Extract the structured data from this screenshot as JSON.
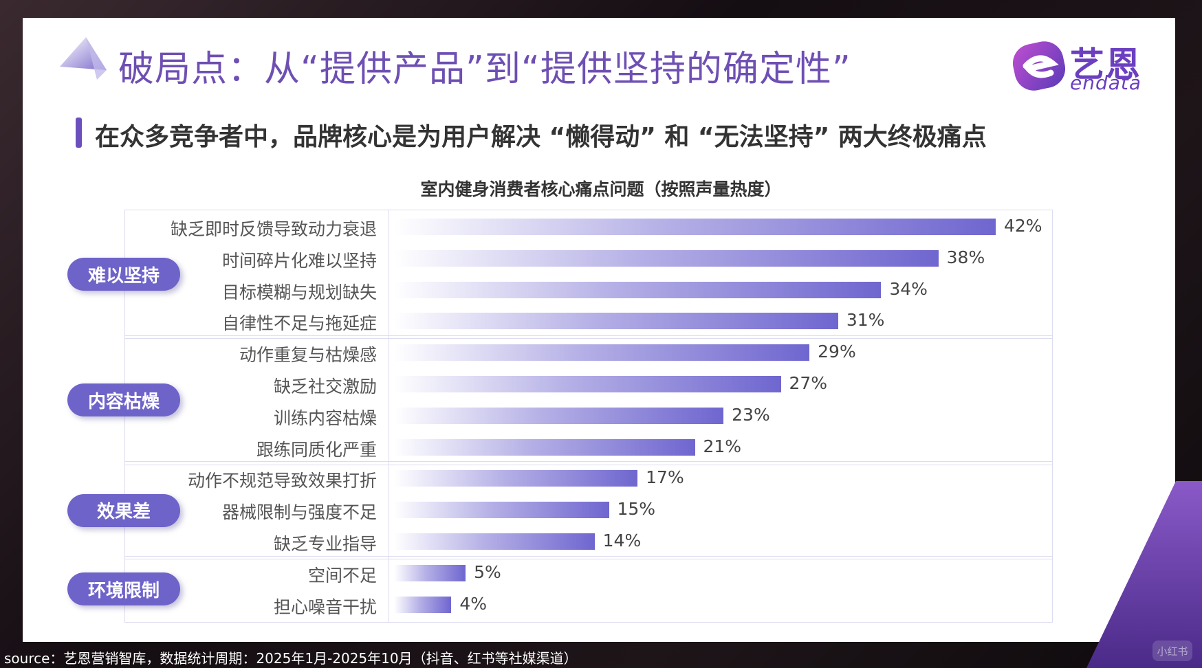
{
  "title": "破局点：从“提供产品”到“提供坚持的确定性”",
  "subtitle": "在众多竞争者中，品牌核心是为用户解决 “懒得动” 和 “无法坚持” 两大终极痛点",
  "logo": {
    "cn": "艺恩",
    "en": "endata"
  },
  "source": "source：艺恩营销智库，数据统计周期：2025年1月-2025年10月（抖音、红书等社媒渠道）",
  "watermark": "小红书",
  "colors": {
    "title": "#6e4fb3",
    "pill": "#6e63c9",
    "bar_end": "#6f66cf"
  },
  "chart_data": {
    "type": "bar",
    "orientation": "horizontal",
    "title": "室内健身消费者核心痛点问题（按照声量热度）",
    "unit": "%",
    "xlim": [
      0,
      42
    ],
    "groups": [
      {
        "name": "难以坚持",
        "categories": [
          "缺乏即时反馈导致动力衰退",
          "时间碎片化难以坚持",
          "目标模糊与规划缺失",
          "自律性不足与拖延症"
        ],
        "values": [
          42,
          38,
          34,
          31
        ]
      },
      {
        "name": "内容枯燥",
        "categories": [
          "动作重复与枯燥感",
          "缺乏社交激励",
          "训练内容枯燥",
          "跟练同质化严重"
        ],
        "values": [
          29,
          27,
          23,
          21
        ]
      },
      {
        "name": "效果差",
        "categories": [
          "动作不规范导致效果打折",
          "器械限制与强度不足",
          "缺乏专业指导"
        ],
        "values": [
          17,
          15,
          14
        ]
      },
      {
        "name": "环境限制",
        "categories": [
          "空间不足",
          "担心噪音干扰"
        ],
        "values": [
          5,
          4
        ]
      }
    ]
  }
}
